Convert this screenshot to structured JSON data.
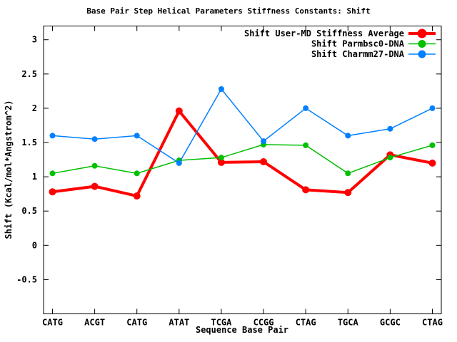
{
  "chart_data": {
    "type": "line",
    "title": "Base Pair Step Helical Parameters Stiffness Constants: Shift",
    "xlabel": "Sequence Base Pair",
    "ylabel": "Shift (Kcal/mol*Angstrom^2)",
    "categories": [
      "CATG",
      "ACGT",
      "CATG",
      "ATAT",
      "TCGA",
      "CCGG",
      "CTAG",
      "TGCA",
      "GCGC",
      "CTAG"
    ],
    "series": [
      {
        "name": "Shift User-MD Stiffness Average",
        "color": "#ff0000",
        "line_width": 4,
        "marker_radius": 5,
        "values": [
          0.78,
          0.86,
          0.72,
          1.96,
          1.21,
          1.22,
          0.81,
          0.77,
          1.32,
          1.2
        ]
      },
      {
        "name": "Shift Parmbsc0-DNA",
        "color": "#00c000",
        "line_width": 1.5,
        "marker_radius": 4,
        "values": [
          1.05,
          1.16,
          1.05,
          1.24,
          1.28,
          1.47,
          1.46,
          1.05,
          1.28,
          1.46
        ]
      },
      {
        "name": "Shift Charmm27-DNA",
        "color": "#0080ff",
        "line_width": 1.5,
        "marker_radius": 4,
        "values": [
          1.6,
          1.55,
          1.6,
          1.2,
          2.28,
          1.52,
          2.0,
          1.6,
          1.7,
          2.0
        ]
      }
    ],
    "ylim": [
      -1.0,
      3.2
    ],
    "yticks": [
      -0.5,
      0,
      0.5,
      1,
      1.5,
      2,
      2.5,
      3
    ],
    "ytick_labels": [
      "-0.5",
      "0",
      "0.5",
      "1",
      "1.5",
      "2",
      "2.5",
      "3"
    ],
    "grid": false,
    "legend_position": "top-right-inside",
    "frame_color": "#000000",
    "background": "#ffffff"
  }
}
